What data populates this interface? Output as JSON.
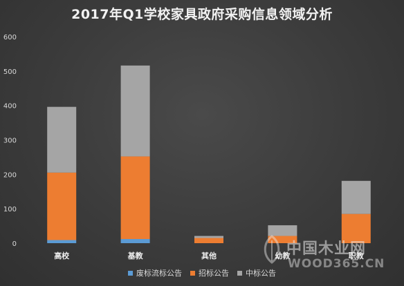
{
  "chart_data": {
    "type": "bar",
    "stacked": true,
    "title": "2017年Q1学校家具政府采购信息领域分析",
    "categories": [
      "高校",
      "基教",
      "其他",
      "幼教",
      "职教"
    ],
    "series": [
      {
        "name": "废标流标公告",
        "color": "#5b9bd5",
        "values": [
          9,
          12,
          0,
          0,
          0
        ]
      },
      {
        "name": "招标公告",
        "color": "#ed7d31",
        "values": [
          196,
          240,
          15,
          21,
          85
        ]
      },
      {
        "name": "中标公告",
        "color": "#a5a5a5",
        "values": [
          191,
          264,
          6,
          31,
          96
        ]
      }
    ],
    "ylim": [
      0,
      600
    ],
    "yticks": [
      0,
      100,
      200,
      300,
      400,
      500,
      600
    ],
    "grid": false,
    "legend_position": "bottom"
  },
  "watermark": {
    "text_cn": "中国木业网",
    "text_en": "WOOD365.CN"
  }
}
